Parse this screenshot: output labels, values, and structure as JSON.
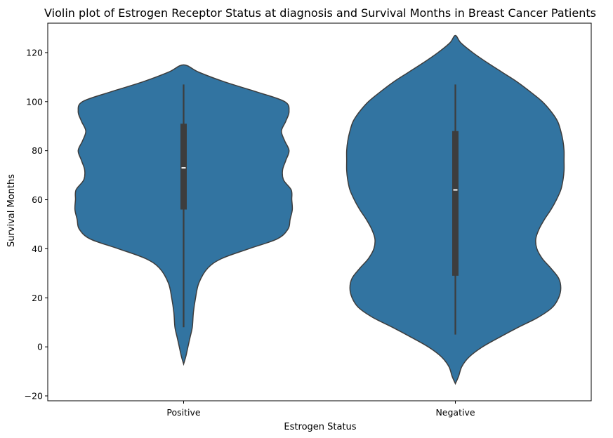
{
  "chart_data": {
    "type": "violin",
    "title": "Violin plot of Estrogen Receptor Status at diagnosis and Survival Months in Breast Cancer Patients",
    "xlabel": "Estrogen Status",
    "ylabel": "Survival Months",
    "categories": [
      "Positive",
      "Negative"
    ],
    "ylim": [
      -22,
      132
    ],
    "yticks": [
      -20,
      0,
      20,
      40,
      60,
      80,
      100,
      120
    ],
    "fill_color": "#3274a1",
    "edge_color": "#3d3d3d",
    "grid": false,
    "violins": [
      {
        "category": "Positive",
        "min": 8,
        "q1": 56,
        "median": 73,
        "q3": 91,
        "max": 107,
        "support": [
          -7,
          115
        ],
        "profile": [
          [
            -7,
            0.0
          ],
          [
            -4,
            0.02
          ],
          [
            0,
            0.04
          ],
          [
            4,
            0.06
          ],
          [
            8,
            0.08
          ],
          [
            14,
            0.09
          ],
          [
            20,
            0.11
          ],
          [
            26,
            0.14
          ],
          [
            32,
            0.22
          ],
          [
            36,
            0.35
          ],
          [
            40,
            0.6
          ],
          [
            44,
            0.86
          ],
          [
            48,
            0.96
          ],
          [
            52,
            0.98
          ],
          [
            56,
            1.0
          ],
          [
            60,
            0.995
          ],
          [
            64,
            0.99
          ],
          [
            68,
            0.92
          ],
          [
            72,
            0.91
          ],
          [
            76,
            0.94
          ],
          [
            80,
            0.97
          ],
          [
            84,
            0.93
          ],
          [
            88,
            0.9
          ],
          [
            92,
            0.94
          ],
          [
            96,
            0.97
          ],
          [
            100,
            0.93
          ],
          [
            104,
            0.67
          ],
          [
            108,
            0.38
          ],
          [
            112,
            0.14
          ],
          [
            115,
            0.0
          ]
        ]
      },
      {
        "category": "Negative",
        "min": 5,
        "q1": 29,
        "median": 64,
        "q3": 88,
        "max": 107,
        "support": [
          -15,
          127
        ],
        "profile": [
          [
            -15,
            0.0
          ],
          [
            -12,
            0.03
          ],
          [
            -8,
            0.06
          ],
          [
            -4,
            0.13
          ],
          [
            0,
            0.25
          ],
          [
            4,
            0.41
          ],
          [
            8,
            0.58
          ],
          [
            12,
            0.76
          ],
          [
            16,
            0.89
          ],
          [
            20,
            0.95
          ],
          [
            24,
            0.97
          ],
          [
            28,
            0.95
          ],
          [
            32,
            0.88
          ],
          [
            36,
            0.8
          ],
          [
            40,
            0.75
          ],
          [
            44,
            0.74
          ],
          [
            48,
            0.77
          ],
          [
            52,
            0.82
          ],
          [
            56,
            0.88
          ],
          [
            60,
            0.93
          ],
          [
            64,
            0.97
          ],
          [
            68,
            0.99
          ],
          [
            72,
            1.0
          ],
          [
            76,
            1.0
          ],
          [
            80,
            1.0
          ],
          [
            84,
            0.99
          ],
          [
            88,
            0.97
          ],
          [
            92,
            0.94
          ],
          [
            96,
            0.88
          ],
          [
            100,
            0.8
          ],
          [
            104,
            0.69
          ],
          [
            108,
            0.57
          ],
          [
            112,
            0.43
          ],
          [
            116,
            0.29
          ],
          [
            120,
            0.16
          ],
          [
            124,
            0.05
          ],
          [
            127,
            0.0
          ]
        ]
      }
    ]
  }
}
